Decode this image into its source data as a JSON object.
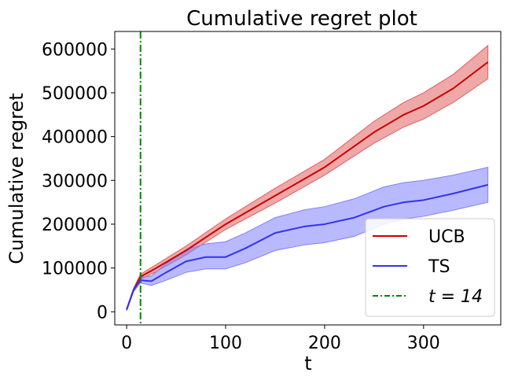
{
  "chart_data": {
    "type": "line",
    "title": "Cumulative regret plot",
    "xlabel": "t",
    "ylabel": "Cumulative regret",
    "xlim": [
      -12,
      378
    ],
    "ylim": [
      -30000,
      640000
    ],
    "xticks": [
      0,
      100,
      200,
      300
    ],
    "yticks": [
      0,
      100000,
      200000,
      300000,
      400000,
      500000,
      600000
    ],
    "grid": false,
    "legend_position": "bottom-right",
    "series": [
      {
        "name": "UCB",
        "color": "#cc0000",
        "band_color": "#e06060",
        "x": [
          0,
          7,
          14,
          30,
          60,
          100,
          150,
          200,
          250,
          280,
          300,
          330,
          365
        ],
        "y": [
          5000,
          50000,
          80000,
          100000,
          140000,
          200000,
          265000,
          330000,
          410000,
          450000,
          470000,
          510000,
          570000
        ],
        "lower": [
          3000,
          46000,
          74000,
          92000,
          130000,
          188000,
          248000,
          312000,
          385000,
          422000,
          440000,
          478000,
          532000
        ],
        "upper": [
          7000,
          54000,
          86000,
          108000,
          150000,
          212000,
          282000,
          348000,
          435000,
          478000,
          500000,
          542000,
          608000
        ]
      },
      {
        "name": "TS",
        "color": "#3333ee",
        "band_color": "#8080ff",
        "x": [
          0,
          7,
          14,
          25,
          40,
          60,
          80,
          100,
          120,
          150,
          180,
          200,
          230,
          260,
          280,
          300,
          330,
          365
        ],
        "y": [
          5000,
          50000,
          72000,
          70000,
          90000,
          115000,
          125000,
          125000,
          145000,
          180000,
          195000,
          200000,
          215000,
          240000,
          250000,
          255000,
          270000,
          290000
        ],
        "lower": [
          3000,
          46000,
          66000,
          60000,
          72000,
          90000,
          98000,
          98000,
          112000,
          140000,
          153000,
          158000,
          172000,
          200000,
          212000,
          218000,
          232000,
          250000
        ],
        "upper": [
          7000,
          54000,
          78000,
          82000,
          110000,
          142000,
          155000,
          160000,
          180000,
          215000,
          233000,
          240000,
          258000,
          285000,
          295000,
          300000,
          312000,
          330000
        ]
      }
    ],
    "vline": {
      "x": 14,
      "label": "t = 14",
      "color": "#008800",
      "style": "dash-dot"
    }
  }
}
